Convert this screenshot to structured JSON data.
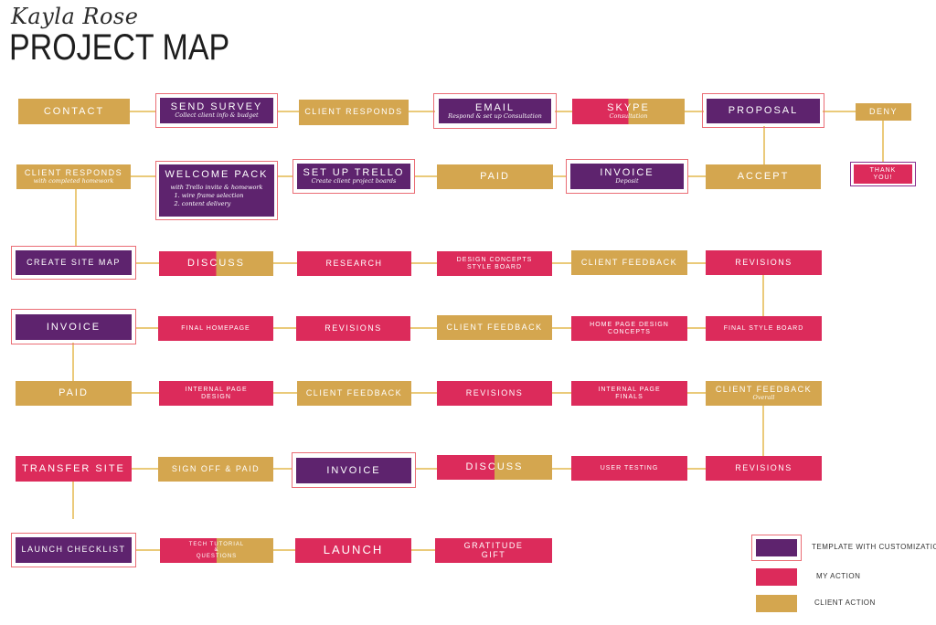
{
  "header": {
    "script_name": "Kayla Rose",
    "title": "PROJECT MAP"
  },
  "colors": {
    "template": "#5e236e",
    "my_action": "#dc2b5b",
    "client_action": "#d4a64f",
    "highlight_frame": "#ea6d75",
    "connector": "#e4b84f"
  },
  "nodes": {
    "contact": {
      "label": "CONTACT"
    },
    "send_survey": {
      "label": "SEND SURVEY",
      "sub": "Collect client info & budget"
    },
    "client_responds": {
      "label": "CLIENT RESPONDS"
    },
    "email": {
      "label": "EMAIL",
      "sub": "Respond & set up Consultation"
    },
    "skype": {
      "label": "SKYPE",
      "sub": "Consultation"
    },
    "proposal": {
      "label": "PROPOSAL"
    },
    "deny": {
      "label": "DENY"
    },
    "thank_you": {
      "line1": "THANK",
      "line2": "YOU!"
    },
    "client_responds_2": {
      "label": "CLIENT RESPONDS",
      "sub": "with completed homework"
    },
    "welcome_pack": {
      "label": "WELCOME PACK",
      "body1": "with Trello invite & homework",
      "body2": "1. wire frame selection",
      "body3": "2. content delivery"
    },
    "set_up_trello": {
      "label": "SET UP TRELLO",
      "sub": "Create client project boards"
    },
    "paid_1": {
      "label": "PAID"
    },
    "invoice_1": {
      "label": "INVOICE",
      "sub": "Deposit"
    },
    "accept": {
      "label": "ACCEPT"
    },
    "create_site_map": {
      "label": "CREATE SITE MAP"
    },
    "discuss_1": {
      "label": "DISCUSS"
    },
    "research": {
      "label": "RESEARCH"
    },
    "design_concepts": {
      "line1": "DESIGN CONCEPTS",
      "line2": "STYLE BOARD"
    },
    "client_feedback_1": {
      "label": "CLIENT FEEDBACK"
    },
    "revisions_1": {
      "label": "REVISIONS"
    },
    "invoice_2": {
      "label": "INVOICE"
    },
    "final_homepage": {
      "label": "FINAL HOMEPAGE"
    },
    "revisions_2": {
      "label": "REVISIONS"
    },
    "client_feedback_2": {
      "label": "CLIENT FEEDBACK"
    },
    "home_page_design": {
      "line1": "HOME PAGE DESIGN",
      "line2": "CONCEPTS"
    },
    "final_style_board": {
      "label": "FINAL STYLE BOARD"
    },
    "paid_2": {
      "label": "PAID"
    },
    "internal_page_design": {
      "line1": "INTERNAL PAGE",
      "line2": "DESIGN"
    },
    "client_feedback_3": {
      "label": "CLIENT FEEDBACK"
    },
    "revisions_3": {
      "label": "REVISIONS"
    },
    "internal_page_finals": {
      "line1": "INTERNAL PAGE",
      "line2": "FINALS"
    },
    "client_feedback_overall": {
      "label": "CLIENT FEEDBACK",
      "sub": "Overall"
    },
    "transfer_site": {
      "label": "TRANSFER SITE"
    },
    "sign_off_paid": {
      "label": "SIGN OFF & PAID"
    },
    "invoice_3": {
      "label": "INVOICE"
    },
    "discuss_2": {
      "label": "DISCUSS"
    },
    "user_testing": {
      "label": "USER TESTING"
    },
    "revisions_4": {
      "label": "REVISIONS"
    },
    "launch_checklist": {
      "label": "LAUNCH CHECKLIST"
    },
    "tech_tutorial": {
      "line1": "TECH TUTORIAL",
      "line2": "&",
      "line3": "QUESTIONS"
    },
    "launch": {
      "label": "LAUNCH"
    },
    "gratitude_gift": {
      "line1": "GRATITUDE",
      "line2": "GIFT"
    }
  },
  "legend": {
    "template": "TEMPLATE WITH CUSTOMIZATION",
    "my_action": "MY ACTION",
    "client_action": "CLIENT ACTION"
  }
}
